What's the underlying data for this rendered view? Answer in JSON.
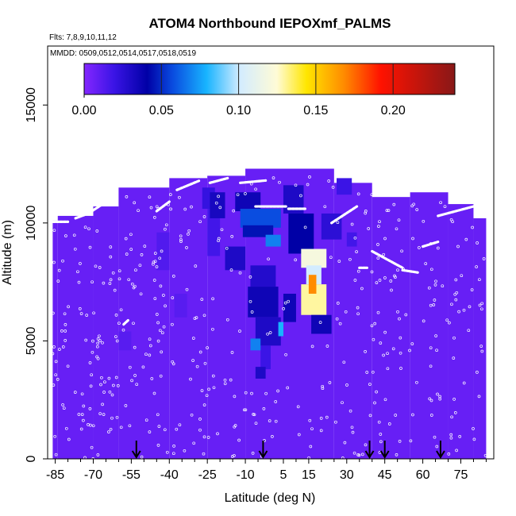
{
  "chart_data": {
    "type": "heatmap",
    "title": "ATOM4 Northbound IEPOXmf_PALMS",
    "subtitle_flights": "Flts: 7,8,9,10,11,12",
    "subtitle_dates": "MMDD: 0509,0512,0514,0517,0518,0519",
    "xlabel": "Latitude (deg N)",
    "ylabel": "Altitude (m)",
    "xlim": [
      -88,
      88
    ],
    "ylim": [
      0,
      17500
    ],
    "x_ticks": [
      -85,
      -70,
      -55,
      -40,
      -25,
      -10,
      5,
      15,
      30,
      45,
      60,
      75
    ],
    "y_ticks": [
      0,
      5000,
      10000,
      15000
    ],
    "colorbar": {
      "range": [
        0,
        0.24
      ],
      "ticks": [
        0.0,
        0.05,
        0.1,
        0.15,
        0.2
      ],
      "tick_labels": [
        "0.00",
        "0.05",
        "0.10",
        "0.15",
        "0.20"
      ]
    },
    "grid": false,
    "background_value": 0.008,
    "background_extent": [
      {
        "lat": [
          -86,
          -84
        ],
        "alt": [
          0,
          10100
        ]
      },
      {
        "lat": [
          -84,
          -70
        ],
        "alt": [
          0,
          10300
        ]
      },
      {
        "lat": [
          -70,
          -60
        ],
        "alt": [
          0,
          10700
        ]
      },
      {
        "lat": [
          -60,
          -40
        ],
        "alt": [
          0,
          11500
        ]
      },
      {
        "lat": [
          -40,
          -25
        ],
        "alt": [
          0,
          11900
        ]
      },
      {
        "lat": [
          -25,
          -10
        ],
        "alt": [
          0,
          12000
        ]
      },
      {
        "lat": [
          -10,
          25
        ],
        "alt": [
          0,
          12300
        ]
      },
      {
        "lat": [
          25,
          40
        ],
        "alt": [
          0,
          11700
        ]
      },
      {
        "lat": [
          40,
          55
        ],
        "alt": [
          0,
          11100
        ]
      },
      {
        "lat": [
          55,
          70
        ],
        "alt": [
          0,
          11300
        ]
      },
      {
        "lat": [
          70,
          80
        ],
        "alt": [
          0,
          10800
        ]
      },
      {
        "lat": [
          80,
          85
        ],
        "alt": [
          0,
          10200
        ]
      }
    ],
    "enhancements": [
      {
        "lat": [
          -60,
          -55
        ],
        "alt": [
          4600,
          5400
        ],
        "value": 0.012
      },
      {
        "lat": [
          -45,
          -40
        ],
        "alt": [
          8000,
          9600
        ],
        "value": 0.014
      },
      {
        "lat": [
          -38,
          -33
        ],
        "alt": [
          6000,
          7000
        ],
        "value": 0.012
      },
      {
        "lat": [
          -27,
          -22
        ],
        "alt": [
          10600,
          11500
        ],
        "value": 0.022
      },
      {
        "lat": [
          -25,
          -20
        ],
        "alt": [
          8600,
          10600
        ],
        "value": 0.018
      },
      {
        "lat": [
          -24,
          -18
        ],
        "alt": [
          10200,
          11300
        ],
        "value": 0.032
      },
      {
        "lat": [
          -14,
          -4
        ],
        "alt": [
          10500,
          11300
        ],
        "value": 0.035
      },
      {
        "lat": [
          -12,
          4
        ],
        "alt": [
          9800,
          10600
        ],
        "value": 0.06
      },
      {
        "lat": [
          -11,
          1
        ],
        "alt": [
          9400,
          9900
        ],
        "value": 0.045
      },
      {
        "lat": [
          -18,
          -10
        ],
        "alt": [
          8000,
          9000
        ],
        "value": 0.03
      },
      {
        "lat": [
          -8,
          2
        ],
        "alt": [
          7300,
          8200
        ],
        "value": 0.028
      },
      {
        "lat": [
          -9,
          3
        ],
        "alt": [
          6000,
          7300
        ],
        "value": 0.035
      },
      {
        "lat": [
          -6,
          4
        ],
        "alt": [
          4800,
          6000
        ],
        "value": 0.03
      },
      {
        "lat": [
          -4,
          0
        ],
        "alt": [
          3800,
          4800
        ],
        "value": 0.02
      },
      {
        "lat": [
          -6,
          -2
        ],
        "alt": [
          3400,
          3900
        ],
        "value": 0.03
      },
      {
        "lat": [
          5,
          13
        ],
        "alt": [
          10400,
          11600
        ],
        "value": 0.03
      },
      {
        "lat": [
          7,
          17
        ],
        "alt": [
          8700,
          10400
        ],
        "value": 0.04
      },
      {
        "lat": [
          12,
          22
        ],
        "alt": [
          8100,
          8900
        ],
        "value": 0.12
      },
      {
        "lat": [
          14,
          20
        ],
        "alt": [
          7400,
          8200
        ],
        "value": 0.1
      },
      {
        "lat": [
          12,
          22
        ],
        "alt": [
          6100,
          7400
        ],
        "value": 0.13
      },
      {
        "lat": [
          15,
          18
        ],
        "alt": [
          7000,
          7800
        ],
        "value": 0.17
      },
      {
        "lat": [
          5,
          10
        ],
        "alt": [
          5800,
          7000
        ],
        "value": 0.035
      },
      {
        "lat": [
          -2,
          4
        ],
        "alt": [
          9000,
          9500
        ],
        "value": 0.07
      },
      {
        "lat": [
          3,
          5
        ],
        "alt": [
          5200,
          5800
        ],
        "value": 0.08
      },
      {
        "lat": [
          -8,
          -4
        ],
        "alt": [
          4600,
          5100
        ],
        "value": 0.07
      },
      {
        "lat": [
          16,
          24
        ],
        "alt": [
          5300,
          6100
        ],
        "value": 0.035
      },
      {
        "lat": [
          20,
          28
        ],
        "alt": [
          9300,
          10400
        ],
        "value": 0.025
      },
      {
        "lat": [
          26,
          32
        ],
        "alt": [
          11200,
          11900
        ],
        "value": 0.02
      },
      {
        "lat": [
          30,
          34
        ],
        "alt": [
          9000,
          9600
        ],
        "value": 0.018
      }
    ],
    "flight_tracks": [
      {
        "lat": [
          -86,
          -80
        ],
        "alt": [
          10050,
          10050
        ]
      },
      {
        "lat": [
          -77,
          -72
        ],
        "alt": [
          10200,
          10400
        ]
      },
      {
        "lat": [
          -72,
          -62
        ],
        "alt": [
          10400,
          11100
        ]
      },
      {
        "lat": [
          -45,
          -40
        ],
        "alt": [
          10500,
          10900
        ]
      },
      {
        "lat": [
          -37,
          -28
        ],
        "alt": [
          11400,
          11800
        ]
      },
      {
        "lat": [
          -24,
          -17
        ],
        "alt": [
          11700,
          11900
        ]
      },
      {
        "lat": [
          -12,
          -2
        ],
        "alt": [
          11700,
          11800
        ]
      },
      {
        "lat": [
          -6,
          6
        ],
        "alt": [
          10700,
          10700
        ]
      },
      {
        "lat": [
          7,
          14
        ],
        "alt": [
          10600,
          10600
        ]
      },
      {
        "lat": [
          24,
          34
        ],
        "alt": [
          10000,
          10700
        ]
      },
      {
        "lat": [
          40,
          52
        ],
        "alt": [
          8800,
          8100
        ]
      },
      {
        "lat": [
          35,
          38
        ],
        "alt": [
          8100,
          8100
        ]
      },
      {
        "lat": [
          52,
          58
        ],
        "alt": [
          8000,
          7900
        ]
      },
      {
        "lat": [
          60,
          66
        ],
        "alt": [
          9000,
          9200
        ]
      },
      {
        "lat": [
          66,
          80
        ],
        "alt": [
          10300,
          10700
        ]
      },
      {
        "lat": [
          -58,
          -56
        ],
        "alt": [
          5700,
          5900
        ]
      },
      {
        "lat": [
          31,
          32
        ],
        "alt": [
          12800,
          12400
        ]
      }
    ],
    "arrows_lat": [
      -53,
      -3,
      39,
      45,
      67
    ]
  }
}
